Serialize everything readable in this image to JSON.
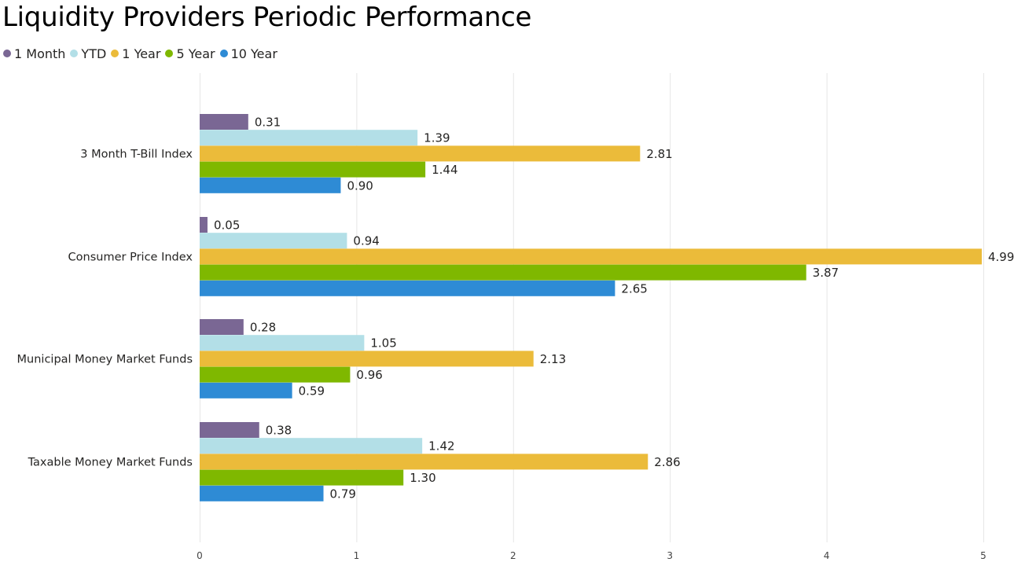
{
  "title": "Liquidity Providers Periodic Performance",
  "chart_data": {
    "type": "bar",
    "orientation": "horizontal",
    "title": "Liquidity Providers Periodic Performance",
    "xlabel": "",
    "ylabel": "",
    "categories": [
      "3 Month T-Bill Index",
      "Consumer Price Index",
      "Municipal Money Market Funds",
      "Taxable Money Market Funds"
    ],
    "series": [
      {
        "name": "1 Month",
        "color": "#7a6794",
        "values": [
          0.31,
          0.05,
          0.28,
          0.38
        ],
        "labels": [
          "0.31",
          "0.05",
          "0.28",
          "0.38"
        ]
      },
      {
        "name": "YTD",
        "color": "#b3dfe7",
        "values": [
          1.39,
          0.94,
          1.05,
          1.42
        ],
        "labels": [
          "1.39",
          "0.94",
          "1.05",
          "1.42"
        ]
      },
      {
        "name": "1 Year",
        "color": "#ebbb3a",
        "values": [
          2.81,
          4.99,
          2.13,
          2.86
        ],
        "labels": [
          "2.81",
          "4.99",
          "2.13",
          "2.86"
        ]
      },
      {
        "name": "5 Year",
        "color": "#7fb800",
        "values": [
          1.44,
          3.87,
          0.96,
          1.3
        ],
        "labels": [
          "1.44",
          "3.87",
          "0.96",
          "1.30"
        ]
      },
      {
        "name": "10 Year",
        "color": "#2e8bd5",
        "values": [
          0.9,
          2.65,
          0.59,
          0.79
        ],
        "labels": [
          "0.90",
          "2.65",
          "0.59",
          "0.79"
        ]
      }
    ],
    "xlim": [
      0,
      5
    ],
    "xticks": [
      "0",
      "1",
      "2",
      "3",
      "4",
      "5"
    ],
    "grid": true,
    "legend_position": "top-left"
  }
}
